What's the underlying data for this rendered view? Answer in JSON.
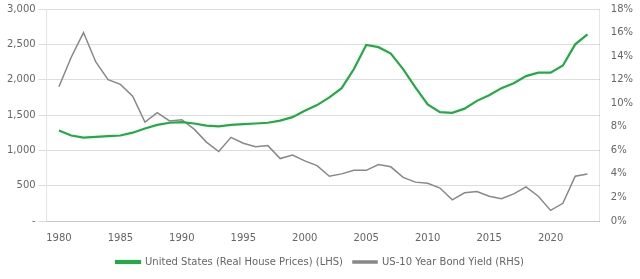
{
  "chart_data": {
    "type": "line",
    "x": [
      1980,
      1981,
      1982,
      1983,
      1984,
      1985,
      1986,
      1987,
      1988,
      1989,
      1990,
      1991,
      1992,
      1993,
      1994,
      1995,
      1996,
      1997,
      1998,
      1999,
      2000,
      2001,
      2002,
      2003,
      2004,
      2005,
      2006,
      2007,
      2008,
      2009,
      2010,
      2011,
      2012,
      2013,
      2014,
      2015,
      2016,
      2017,
      2018,
      2019,
      2020,
      2021,
      2022,
      2023
    ],
    "series": [
      {
        "name": "United States (Real House Prices) (LHS)",
        "color": "#22aa44",
        "values": [
          1280,
          1210,
          1180,
          1190,
          1200,
          1210,
          1250,
          1310,
          1360,
          1390,
          1400,
          1380,
          1350,
          1340,
          1360,
          1370,
          1380,
          1390,
          1420,
          1470,
          1560,
          1640,
          1750,
          1880,
          2150,
          2490,
          2460,
          2370,
          2150,
          1890,
          1650,
          1540,
          1530,
          1590,
          1700,
          1780,
          1880,
          1950,
          2050,
          2100,
          2100,
          2200,
          2500,
          2640
        ]
      },
      {
        "name": "US-10 Year Bond Yield (RHS)",
        "color": "#888888",
        "axis": "y2",
        "values": [
          11.4,
          13.9,
          16.0,
          13.5,
          12.0,
          11.6,
          10.6,
          8.4,
          9.2,
          8.5,
          8.6,
          7.8,
          6.7,
          5.9,
          7.1,
          6.6,
          6.3,
          6.4,
          5.3,
          5.6,
          5.1,
          4.7,
          3.8,
          4.0,
          4.3,
          4.3,
          4.8,
          4.6,
          3.7,
          3.3,
          3.2,
          2.8,
          1.8,
          2.4,
          2.5,
          2.1,
          1.9,
          2.3,
          2.9,
          2.1,
          0.9,
          1.5,
          3.8,
          4.0
        ]
      }
    ],
    "xlim": [
      1979,
      2024
    ],
    "xticks": [
      1980,
      1985,
      1990,
      1995,
      2000,
      2005,
      2010,
      2015,
      2020
    ],
    "ylim": [
      0,
      3000
    ],
    "yticks": [
      {
        "value": 0,
        "label": "-"
      },
      500,
      {
        "value": 1000,
        "label": "1,000"
      },
      {
        "value": 1500,
        "label": "1,500"
      },
      {
        "value": 2000,
        "label": "2,000"
      },
      {
        "value": 2500,
        "label": "2,500"
      },
      {
        "value": 3000,
        "label": "3,000"
      }
    ],
    "y2lim": [
      0,
      18
    ],
    "y2ticks": [
      {
        "value": 0,
        "label": "0%"
      },
      {
        "value": 2,
        "label": "2%"
      },
      {
        "value": 4,
        "label": "4%"
      },
      {
        "value": 6,
        "label": "6%"
      },
      {
        "value": 8,
        "label": "8%"
      },
      {
        "value": 10,
        "label": "10%"
      },
      {
        "value": 12,
        "label": "12%"
      },
      {
        "value": 14,
        "label": "14%"
      },
      {
        "value": 16,
        "label": "16%"
      },
      {
        "value": 18,
        "label": "18%"
      }
    ],
    "grid": true,
    "legend": "bottom"
  }
}
